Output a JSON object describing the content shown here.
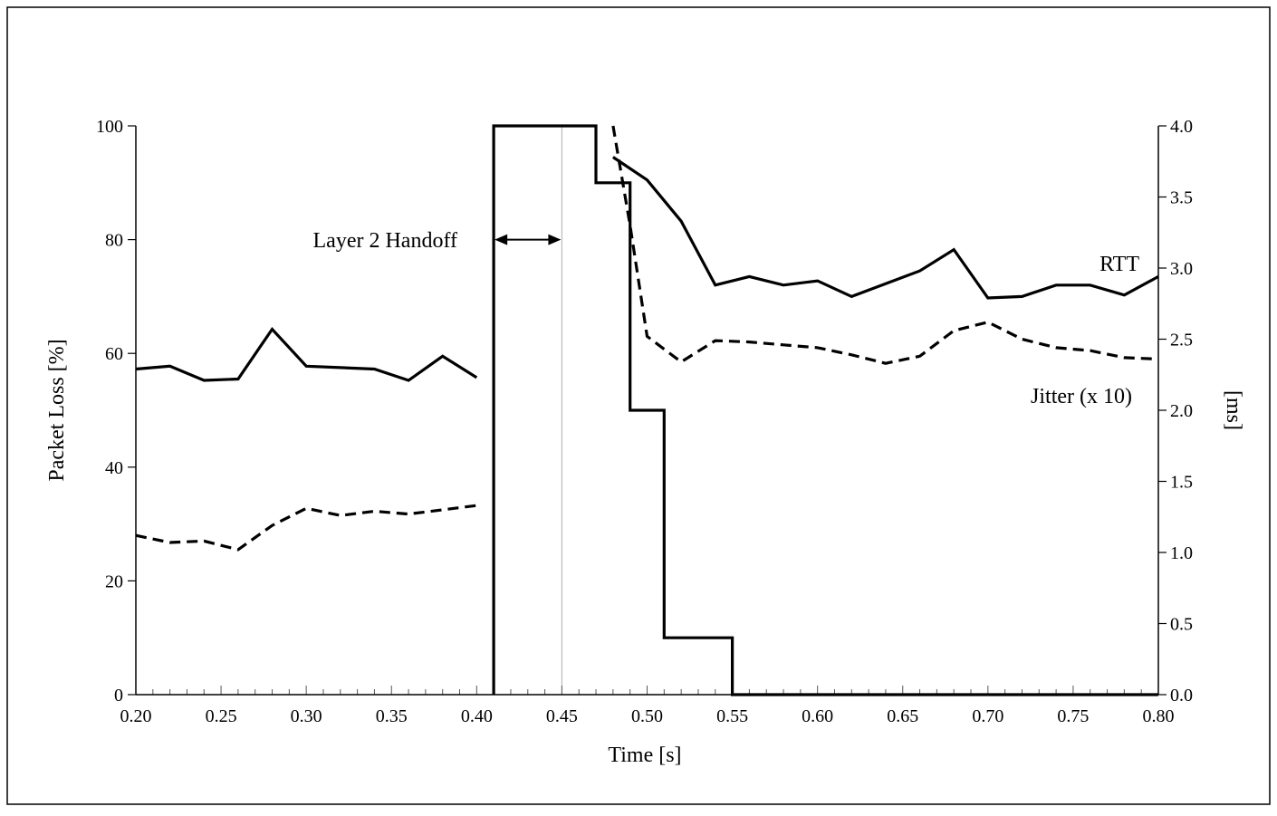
{
  "chart_data": {
    "type": "line",
    "xlabel": "Time  [s]",
    "ylabel_left": "Packet Loss [%]",
    "ylabel_right": "[ms]",
    "xlim": [
      0.2,
      0.8
    ],
    "ylim_left": [
      0,
      100
    ],
    "ylim_right": [
      0,
      4.0
    ],
    "grid": false,
    "x_ticks": [
      "0.20",
      "0.25",
      "0.30",
      "0.35",
      "0.40",
      "0.45",
      "0.50",
      "0.55",
      "0.60",
      "0.65",
      "0.70",
      "0.75",
      "0.80"
    ],
    "y_left_ticks": [
      "0",
      "20",
      "40",
      "60",
      "80",
      "100"
    ],
    "y_right_ticks": [
      "0.0",
      "0.5",
      "1.0",
      "1.5",
      "2.0",
      "2.5",
      "3.0",
      "3.5",
      "4.0"
    ],
    "annotations": {
      "handoff": "Layer 2 Handoff",
      "rtt": "RTT",
      "jitter": "Jitter (x 10)"
    },
    "handoff_interval": [
      0.41,
      0.45
    ],
    "series": [
      {
        "name": "RTT",
        "axis": "right",
        "style": "solid",
        "segments": [
          {
            "x": [
              0.2,
              0.22,
              0.24,
              0.26,
              0.28,
              0.3,
              0.32,
              0.34,
              0.36,
              0.38,
              0.4
            ],
            "y": [
              2.29,
              2.31,
              2.21,
              2.22,
              2.57,
              2.31,
              2.3,
              2.29,
              2.21,
              2.38,
              2.23
            ]
          },
          {
            "x": [
              0.48,
              0.5,
              0.52,
              0.54,
              0.56,
              0.58,
              0.6,
              0.62,
              0.64,
              0.66,
              0.68,
              0.7,
              0.72,
              0.74,
              0.76,
              0.78,
              0.8
            ],
            "y": [
              3.78,
              3.62,
              3.33,
              2.88,
              2.94,
              2.88,
              2.91,
              2.8,
              2.89,
              2.98,
              3.13,
              2.79,
              2.8,
              2.88,
              2.88,
              2.81,
              2.94
            ]
          }
        ]
      },
      {
        "name": "Jitter (x 10)",
        "axis": "right",
        "style": "dashed",
        "segments": [
          {
            "x": [
              0.2,
              0.22,
              0.24,
              0.26,
              0.28,
              0.3,
              0.32,
              0.34,
              0.36,
              0.38,
              0.4
            ],
            "y": [
              1.12,
              1.07,
              1.08,
              1.02,
              1.19,
              1.31,
              1.26,
              1.29,
              1.27,
              1.3,
              1.33
            ]
          },
          {
            "x": [
              0.48,
              0.49,
              0.5,
              0.52,
              0.54,
              0.56,
              0.58,
              0.6,
              0.62,
              0.64,
              0.66,
              0.68,
              0.7,
              0.72,
              0.74,
              0.76,
              0.78,
              0.8
            ],
            "y": [
              4.0,
              3.3,
              2.52,
              2.34,
              2.49,
              2.48,
              2.46,
              2.44,
              2.39,
              2.33,
              2.38,
              2.56,
              2.62,
              2.5,
              2.44,
              2.42,
              2.37,
              2.36
            ]
          }
        ]
      },
      {
        "name": "Packet Loss",
        "axis": "left",
        "style": "step",
        "x": [
          0.41,
          0.41,
          0.47,
          0.47,
          0.49,
          0.49,
          0.51,
          0.51,
          0.55,
          0.55,
          0.8
        ],
        "y": [
          0,
          100,
          100,
          90,
          90,
          50,
          50,
          10,
          10,
          0,
          0
        ]
      }
    ]
  }
}
